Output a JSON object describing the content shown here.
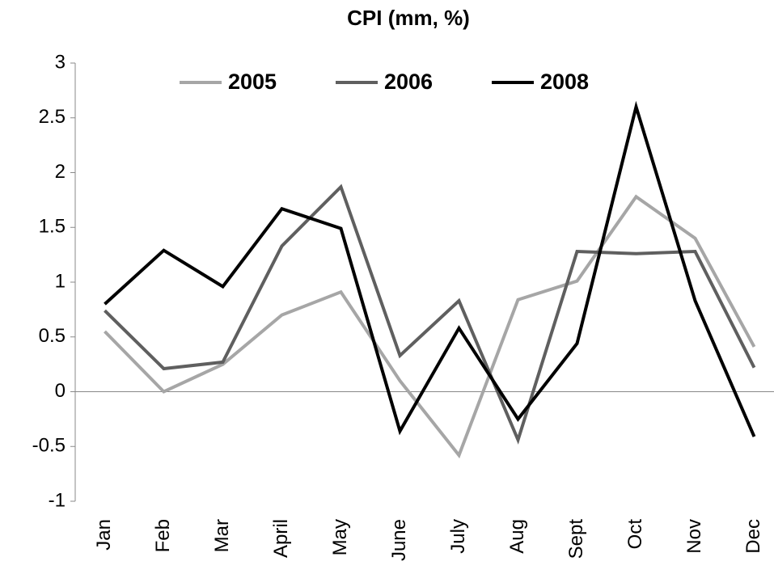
{
  "chart_data": {
    "type": "line",
    "title": "CPI (mm, %)",
    "categories": [
      "Jan",
      "Feb",
      "Mar",
      "April",
      "May",
      "June",
      "July",
      "Aug",
      "Sept",
      "Oct",
      "Nov",
      "Dec"
    ],
    "series": [
      {
        "name": "2005",
        "color": "#a6a6a6",
        "values": [
          0.55,
          0.0,
          0.25,
          0.7,
          0.91,
          0.1,
          -0.58,
          0.84,
          1.01,
          1.78,
          1.4,
          0.41
        ]
      },
      {
        "name": "2006",
        "color": "#5f5f5f",
        "values": [
          0.74,
          0.21,
          0.27,
          1.33,
          1.87,
          0.33,
          0.83,
          -0.44,
          1.28,
          1.26,
          1.28,
          0.22
        ]
      },
      {
        "name": "2008",
        "color": "#000000",
        "values": [
          0.8,
          1.29,
          0.96,
          1.67,
          1.49,
          -0.36,
          0.58,
          -0.25,
          0.44,
          2.6,
          0.83,
          -0.41
        ]
      }
    ],
    "ylim": [
      -1,
      3
    ],
    "yticks": [
      -1,
      -0.5,
      0,
      0.5,
      1,
      1.5,
      2,
      2.5,
      3
    ],
    "legend": "top"
  }
}
